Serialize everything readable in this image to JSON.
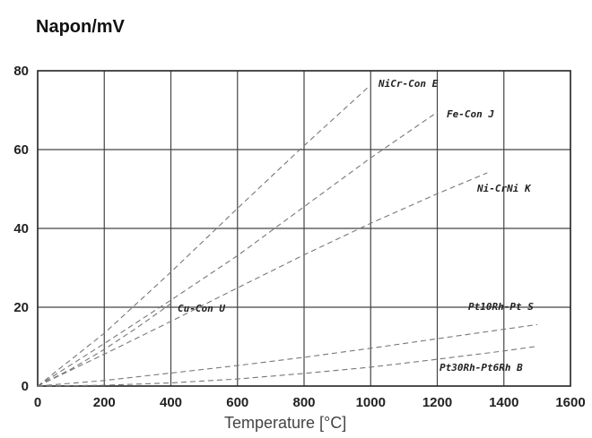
{
  "chart_data": {
    "type": "line",
    "title": "Napon/mV",
    "xlabel": "Temperature [°C]",
    "ylabel": "",
    "xlim": [
      0,
      1600
    ],
    "ylim": [
      0,
      80
    ],
    "xticks": [
      0,
      200,
      400,
      600,
      800,
      1000,
      1200,
      1400,
      1600
    ],
    "yticks": [
      0,
      20,
      40,
      60,
      80
    ],
    "grid": true,
    "series": [
      {
        "name": "NiCr-Con E",
        "x": [
          0,
          200,
          400,
          600,
          800,
          1000
        ],
        "y": [
          0,
          13.4,
          28.9,
          45.1,
          61.0,
          76.4
        ]
      },
      {
        "name": "Fe-Con J",
        "x": [
          0,
          200,
          400,
          600,
          800,
          1000,
          1200
        ],
        "y": [
          0,
          10.8,
          21.8,
          33.1,
          45.5,
          57.9,
          69.5
        ]
      },
      {
        "name": "Ni-CrNi K",
        "x": [
          0,
          200,
          400,
          600,
          800,
          1000,
          1200,
          1350
        ],
        "y": [
          0,
          8.1,
          16.4,
          24.9,
          33.3,
          41.3,
          48.8,
          54.1
        ]
      },
      {
        "name": "Cu-Con U",
        "x": [
          0,
          100,
          200,
          300,
          400
        ],
        "y": [
          0,
          4.3,
          9.3,
          14.9,
          20.9
        ]
      },
      {
        "name": "Pt10Rh-Pt S",
        "x": [
          0,
          200,
          400,
          600,
          800,
          1000,
          1200,
          1400,
          1500
        ],
        "y": [
          0,
          1.4,
          3.3,
          5.2,
          7.3,
          9.6,
          12.0,
          14.4,
          15.6
        ]
      },
      {
        "name": "Pt30Rh-Pt6Rh B",
        "x": [
          0,
          200,
          400,
          600,
          800,
          1000,
          1200,
          1400,
          1500
        ],
        "y": [
          0,
          0.2,
          0.8,
          1.8,
          3.2,
          4.8,
          6.8,
          8.9,
          10.1
        ]
      }
    ],
    "series_label_values": [
      "NiCr-Con E",
      "Fe-Con J",
      "Ni-CrNi K",
      "Cu-Con U",
      "Pt10Rh-Pt S",
      "Pt30Rh-Pt6Rh B"
    ]
  }
}
